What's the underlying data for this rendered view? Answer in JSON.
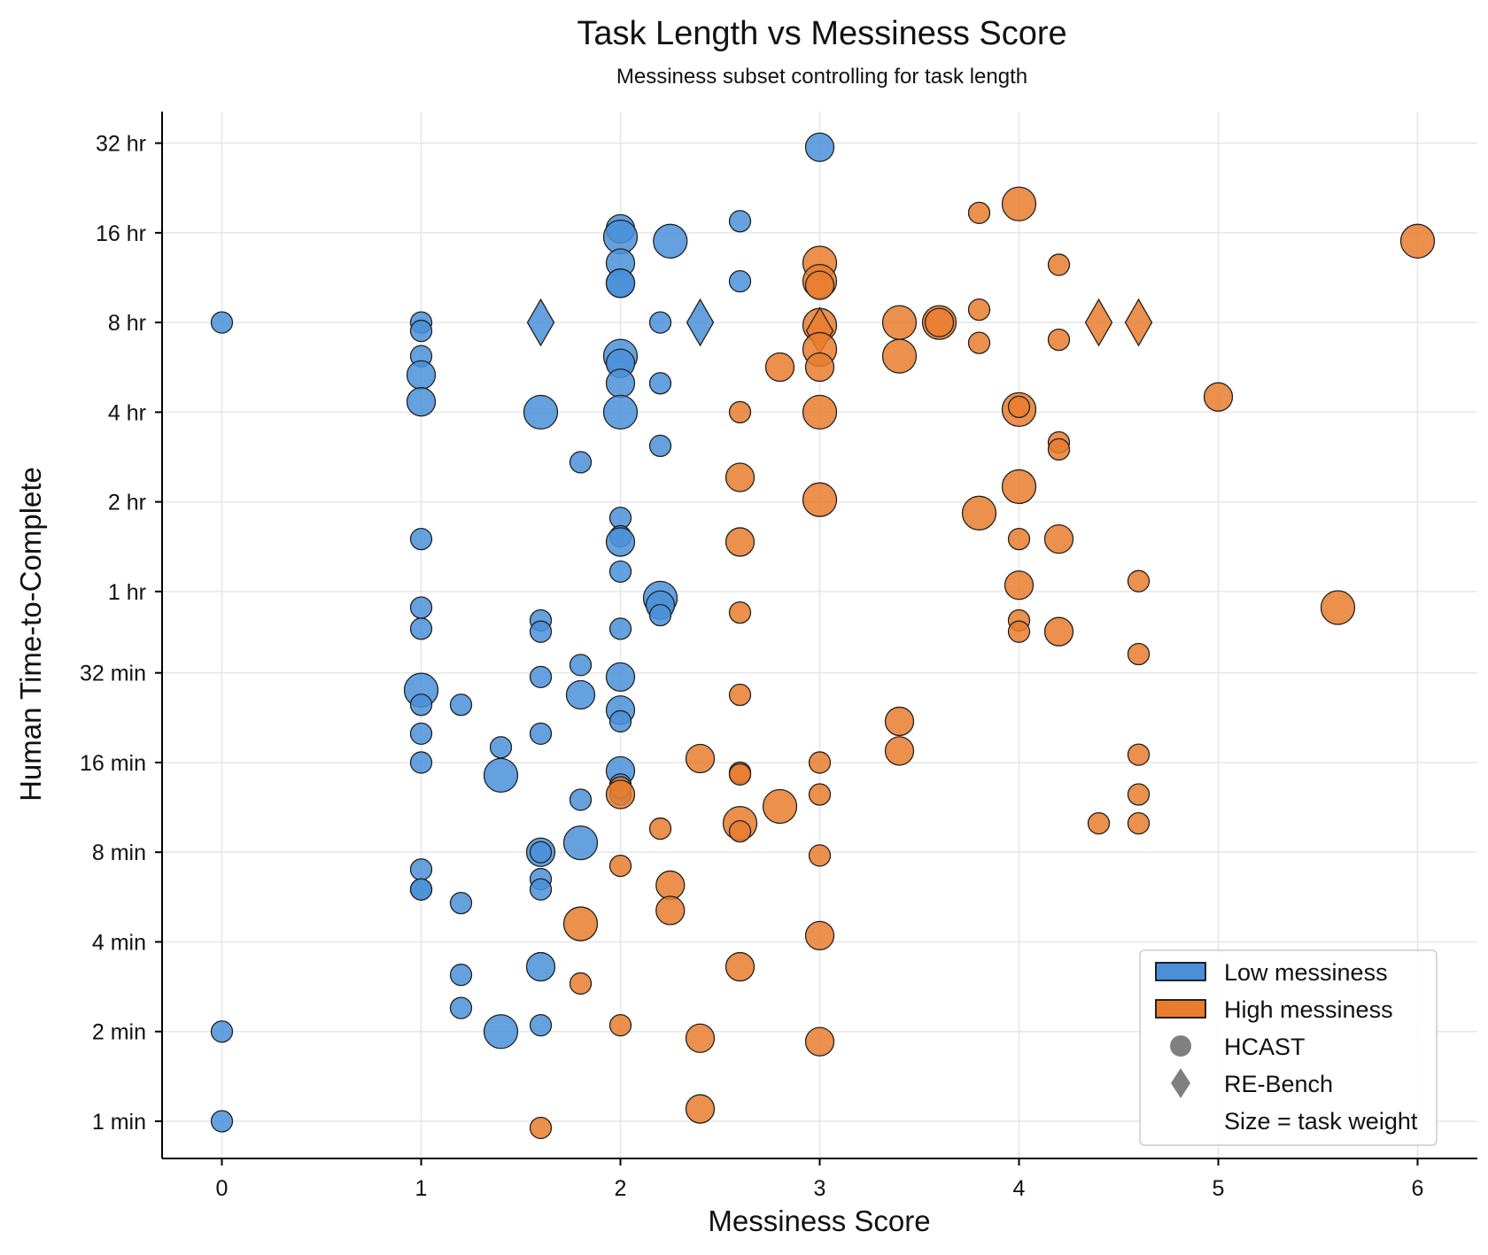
{
  "chart_data": {
    "type": "scatter",
    "title": "Task Length vs Messiness Score",
    "subtitle": "Messiness subset controlling for task length",
    "xlabel": "Messiness Score",
    "ylabel": "Human Time-to-Complete",
    "x_scale": "linear",
    "y_scale": "log2",
    "xlim": [
      -0.3,
      6.3
    ],
    "ylim_minutes": [
      0.75,
      2450
    ],
    "x_ticks": [
      {
        "value": 0,
        "label": "0"
      },
      {
        "value": 1,
        "label": "1"
      },
      {
        "value": 2,
        "label": "2"
      },
      {
        "value": 3,
        "label": "3"
      },
      {
        "value": 4,
        "label": "4"
      },
      {
        "value": 5,
        "label": "5"
      },
      {
        "value": 6,
        "label": "6"
      }
    ],
    "y_ticks": [
      {
        "minutes": 1,
        "label": "1 min"
      },
      {
        "minutes": 2,
        "label": "2 min"
      },
      {
        "minutes": 4,
        "label": "4 min"
      },
      {
        "minutes": 8,
        "label": "8 min"
      },
      {
        "minutes": 16,
        "label": "16 min"
      },
      {
        "minutes": 32,
        "label": "32 min"
      },
      {
        "minutes": 60,
        "label": "1 hr"
      },
      {
        "minutes": 120,
        "label": "2 hr"
      },
      {
        "minutes": 240,
        "label": "4 hr"
      },
      {
        "minutes": 480,
        "label": "8 hr"
      },
      {
        "minutes": 960,
        "label": "16 hr"
      },
      {
        "minutes": 1920,
        "label": "32 hr"
      }
    ],
    "grid": true,
    "legend_position": "lower right",
    "legend": [
      {
        "kind": "patch",
        "color": "#4a90d9",
        "label": "Low messiness"
      },
      {
        "kind": "patch",
        "color": "#e87d2e",
        "label": "High messiness"
      },
      {
        "kind": "circle",
        "color": "#808080",
        "label": "HCAST"
      },
      {
        "kind": "diamond",
        "color": "#808080",
        "label": "RE-Bench"
      },
      {
        "kind": "text",
        "label": "Size = task weight"
      }
    ],
    "series": [
      {
        "name": "Low messiness",
        "color": "#4a90d9",
        "points": [
          [
            0,
            480,
            "c",
            1
          ],
          [
            0,
            2,
            "c",
            1
          ],
          [
            0,
            1,
            "c",
            1
          ],
          [
            1,
            480,
            "c",
            1
          ],
          [
            1,
            450,
            "c",
            1
          ],
          [
            1,
            370,
            "c",
            1
          ],
          [
            1,
            320,
            "c",
            2
          ],
          [
            1,
            260,
            "c",
            2
          ],
          [
            1,
            90,
            "c",
            1
          ],
          [
            1,
            53,
            "c",
            1
          ],
          [
            1,
            45,
            "c",
            1
          ],
          [
            1,
            28,
            "c",
            3
          ],
          [
            1,
            25,
            "c",
            1
          ],
          [
            1,
            20,
            "c",
            1
          ],
          [
            1,
            16,
            "c",
            1
          ],
          [
            1,
            7,
            "c",
            1
          ],
          [
            1,
            6,
            "c",
            1
          ],
          [
            1,
            6,
            "c",
            1
          ],
          [
            1.2,
            25,
            "c",
            1
          ],
          [
            1.2,
            5.4,
            "c",
            1
          ],
          [
            1.2,
            3.1,
            "c",
            1
          ],
          [
            1.2,
            2.4,
            "c",
            1
          ],
          [
            1.4,
            18,
            "c",
            1
          ],
          [
            1.4,
            14.5,
            "c",
            3
          ],
          [
            1.4,
            2,
            "c",
            3
          ],
          [
            1.6,
            480,
            "d",
            2
          ],
          [
            1.6,
            240,
            "c",
            3
          ],
          [
            1.6,
            48,
            "c",
            1
          ],
          [
            1.6,
            44,
            "c",
            1
          ],
          [
            1.6,
            31,
            "c",
            1
          ],
          [
            1.6,
            20,
            "c",
            1
          ],
          [
            1.6,
            8,
            "c",
            2
          ],
          [
            1.6,
            8,
            "c",
            1
          ],
          [
            1.6,
            6.5,
            "c",
            1
          ],
          [
            1.6,
            6,
            "c",
            1
          ],
          [
            1.6,
            3.3,
            "c",
            2
          ],
          [
            1.6,
            2.1,
            "c",
            1
          ],
          [
            1.8,
            163,
            "c",
            1
          ],
          [
            1.8,
            34,
            "c",
            1
          ],
          [
            1.8,
            27,
            "c",
            2
          ],
          [
            1.8,
            12,
            "c",
            1
          ],
          [
            1.8,
            8.6,
            "c",
            3
          ],
          [
            2,
            990,
            "c",
            2
          ],
          [
            2,
            930,
            "c",
            3
          ],
          [
            2,
            760,
            "c",
            2
          ],
          [
            2,
            650,
            "c",
            2
          ],
          [
            2,
            650,
            "c",
            2
          ],
          [
            2,
            370,
            "c",
            3
          ],
          [
            2,
            350,
            "c",
            2
          ],
          [
            2,
            300,
            "c",
            2
          ],
          [
            2,
            240,
            "c",
            3
          ],
          [
            2,
            106,
            "c",
            1
          ],
          [
            2,
            92,
            "c",
            1
          ],
          [
            2,
            88,
            "c",
            2
          ],
          [
            2,
            70,
            "c",
            1
          ],
          [
            2,
            45,
            "c",
            1
          ],
          [
            2,
            31,
            "c",
            2
          ],
          [
            2,
            24,
            "c",
            2
          ],
          [
            2,
            22,
            "c",
            1
          ],
          [
            2,
            15,
            "c",
            2
          ],
          [
            2,
            13.5,
            "c",
            1
          ],
          [
            2,
            12.5,
            "c",
            1
          ],
          [
            2.2,
            480,
            "c",
            1
          ],
          [
            2.2,
            300,
            "c",
            1
          ],
          [
            2.2,
            185,
            "c",
            1
          ],
          [
            2.2,
            57,
            "c",
            3
          ],
          [
            2.2,
            54,
            "c",
            2
          ],
          [
            2.2,
            50,
            "c",
            1
          ],
          [
            2.25,
            900,
            "c",
            3
          ],
          [
            2.4,
            480,
            "d",
            2
          ],
          [
            2.6,
            1050,
            "c",
            1
          ],
          [
            2.6,
            660,
            "c",
            1
          ],
          [
            3,
            1860,
            "c",
            2
          ]
        ]
      },
      {
        "name": "High messiness",
        "color": "#e87d2e",
        "points": [
          [
            1.6,
            0.95,
            "c",
            1
          ],
          [
            1.8,
            4.6,
            "c",
            3
          ],
          [
            1.8,
            2.9,
            "c",
            1
          ],
          [
            2,
            13.2,
            "c",
            1
          ],
          [
            2,
            12.5,
            "c",
            2
          ],
          [
            2,
            7.2,
            "c",
            1
          ],
          [
            2,
            2.1,
            "c",
            1
          ],
          [
            2.2,
            9.6,
            "c",
            1
          ],
          [
            2.25,
            6.2,
            "c",
            2
          ],
          [
            2.25,
            5.1,
            "c",
            2
          ],
          [
            2.4,
            16.5,
            "c",
            2
          ],
          [
            2.4,
            1.9,
            "c",
            2
          ],
          [
            2.4,
            1.1,
            "c",
            2
          ],
          [
            2.6,
            240,
            "c",
            1
          ],
          [
            2.6,
            145,
            "c",
            2
          ],
          [
            2.6,
            88,
            "c",
            2
          ],
          [
            2.6,
            51,
            "c",
            1
          ],
          [
            2.6,
            27,
            "c",
            1
          ],
          [
            2.6,
            14.8,
            "c",
            1
          ],
          [
            2.6,
            14.6,
            "c",
            1
          ],
          [
            2.6,
            10,
            "c",
            3
          ],
          [
            2.6,
            9.4,
            "c",
            1
          ],
          [
            2.6,
            3.3,
            "c",
            2
          ],
          [
            2.8,
            340,
            "c",
            2
          ],
          [
            2.8,
            11.4,
            "c",
            3
          ],
          [
            3,
            760,
            "c",
            3
          ],
          [
            3,
            660,
            "c",
            3
          ],
          [
            3,
            640,
            "c",
            2
          ],
          [
            3,
            470,
            "c",
            3
          ],
          [
            3,
            450,
            "d",
            2
          ],
          [
            3,
            390,
            "c",
            3
          ],
          [
            3,
            340,
            "c",
            2
          ],
          [
            3,
            240,
            "c",
            3
          ],
          [
            3,
            122,
            "c",
            3
          ],
          [
            3,
            16,
            "c",
            1
          ],
          [
            3,
            12.5,
            "c",
            1
          ],
          [
            3,
            7.8,
            "c",
            1
          ],
          [
            3,
            4.2,
            "c",
            2
          ],
          [
            3,
            1.85,
            "c",
            2
          ],
          [
            3.4,
            480,
            "c",
            3
          ],
          [
            3.4,
            370,
            "c",
            3
          ],
          [
            3.4,
            22,
            "c",
            2
          ],
          [
            3.4,
            17.5,
            "c",
            2
          ],
          [
            3.6,
            480,
            "c",
            3
          ],
          [
            3.6,
            480,
            "c",
            2
          ],
          [
            3.8,
            1120,
            "c",
            1
          ],
          [
            3.8,
            530,
            "c",
            1
          ],
          [
            3.8,
            410,
            "c",
            1
          ],
          [
            3.8,
            110,
            "c",
            3
          ],
          [
            4,
            1200,
            "c",
            3
          ],
          [
            4,
            245,
            "c",
            3
          ],
          [
            4,
            250,
            "c",
            1
          ],
          [
            4,
            135,
            "c",
            3
          ],
          [
            4,
            90,
            "c",
            1
          ],
          [
            4,
            63,
            "c",
            2
          ],
          [
            4,
            48,
            "c",
            1
          ],
          [
            4,
            44,
            "c",
            1
          ],
          [
            4.2,
            750,
            "c",
            1
          ],
          [
            4.2,
            420,
            "c",
            1
          ],
          [
            4.2,
            190,
            "c",
            1
          ],
          [
            4.2,
            180,
            "c",
            1
          ],
          [
            4.2,
            90,
            "c",
            2
          ],
          [
            4.2,
            44,
            "c",
            2
          ],
          [
            4.4,
            480,
            "d",
            2
          ],
          [
            4.4,
            10,
            "c",
            1
          ],
          [
            4.6,
            480,
            "d",
            2
          ],
          [
            4.6,
            65,
            "c",
            1
          ],
          [
            4.6,
            37,
            "c",
            1
          ],
          [
            4.6,
            17,
            "c",
            1
          ],
          [
            4.6,
            12.5,
            "c",
            1
          ],
          [
            4.6,
            10,
            "c",
            1
          ],
          [
            5,
            270,
            "c",
            2
          ],
          [
            5.6,
            53,
            "c",
            3
          ],
          [
            6,
            900,
            "c",
            3
          ]
        ]
      }
    ]
  }
}
